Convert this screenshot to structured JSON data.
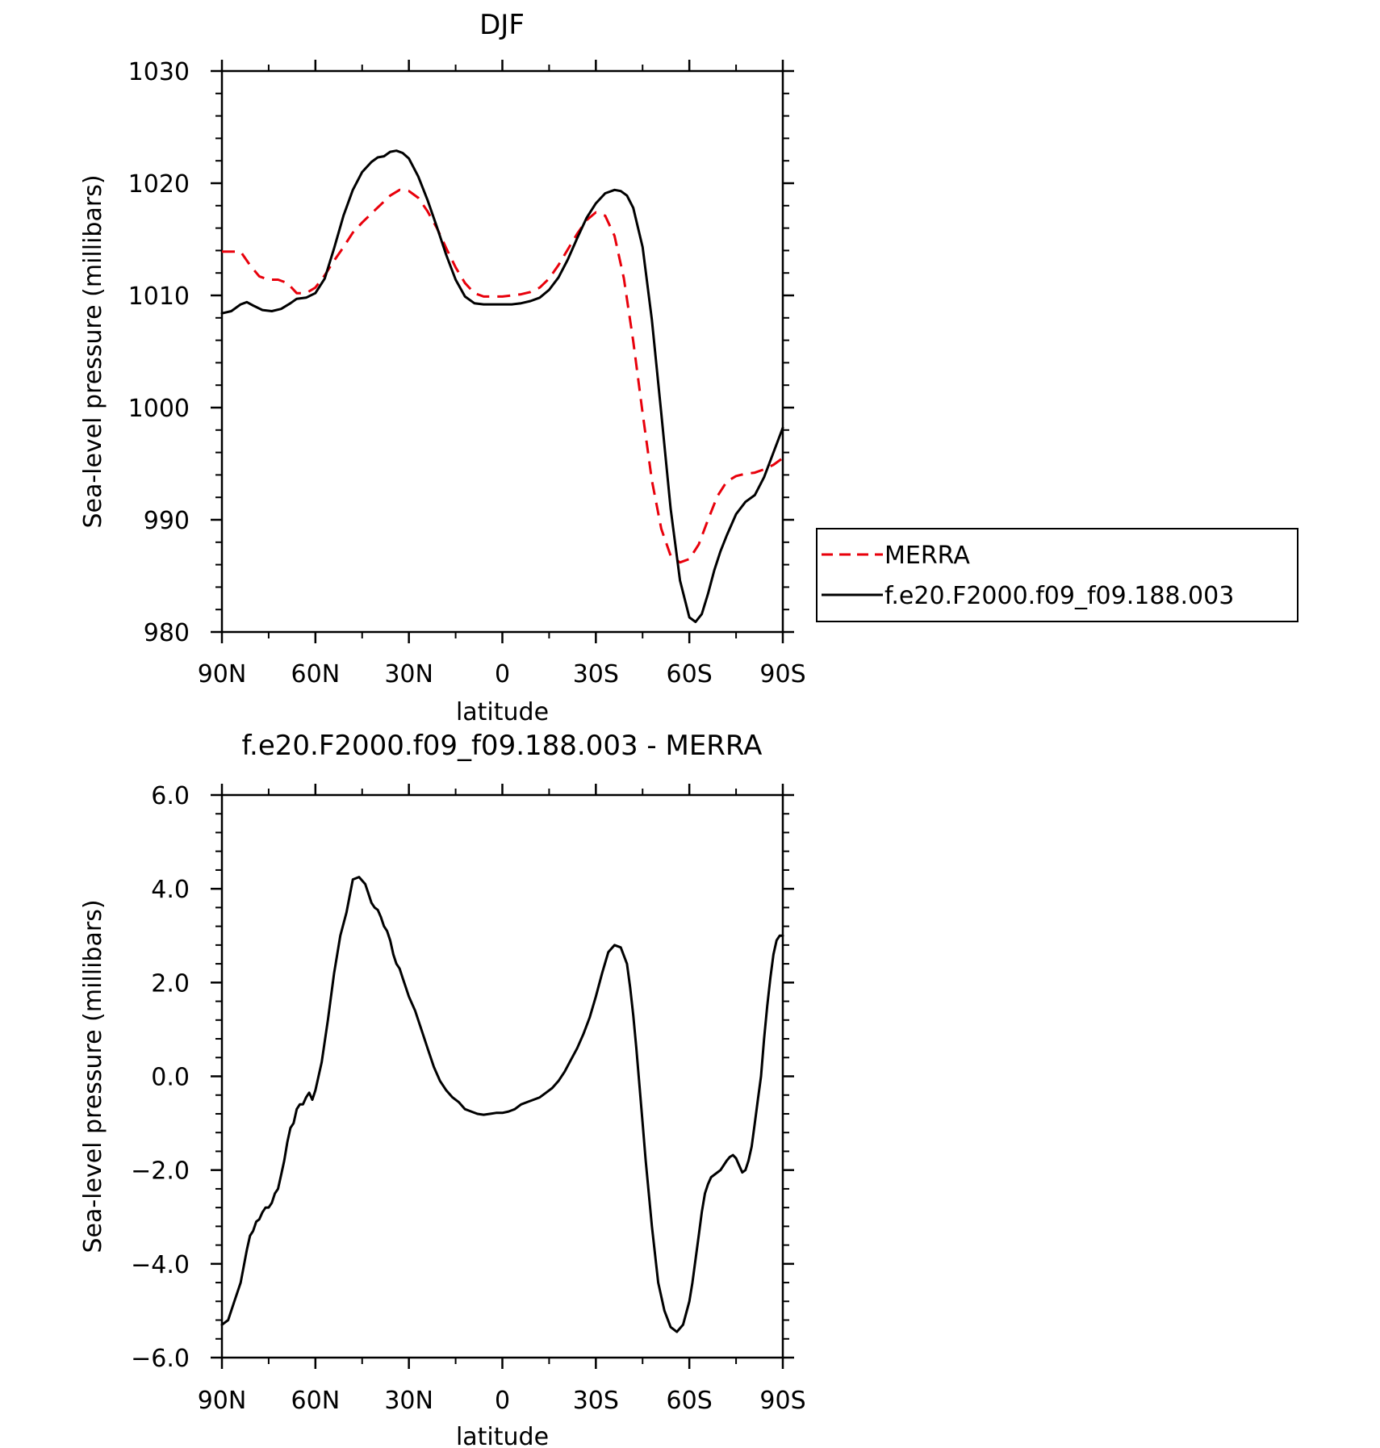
{
  "chart_data": [
    {
      "type": "line",
      "title": "DJF",
      "xlabel": "latitude",
      "ylabel": "Sea-level pressure (millibars)",
      "xlim": [
        90,
        -90
      ],
      "ylim": [
        980,
        1030
      ],
      "x_tick_values": [
        90,
        60,
        30,
        0,
        -30,
        -60,
        -90
      ],
      "x_tick_labels": [
        "90N",
        "60N",
        "30N",
        "0",
        "30S",
        "60S",
        "90S"
      ],
      "y_tick_values": [
        980,
        990,
        1000,
        1010,
        1020,
        1030
      ],
      "y_tick_labels": [
        "980",
        "990",
        "1000",
        "1010",
        "1020",
        "1030"
      ],
      "legend_position": "right",
      "series": [
        {
          "name": "MERRA",
          "color": "#e8000b",
          "dash": "dashed",
          "x": [
            90,
            86,
            84,
            81,
            78,
            75,
            72,
            69,
            66,
            63,
            60,
            57,
            54,
            51,
            48,
            45,
            42,
            39,
            36,
            33,
            30,
            27,
            24,
            21,
            18,
            15,
            12,
            9,
            6,
            3,
            0,
            -3,
            -6,
            -9,
            -12,
            -15,
            -18,
            -21,
            -24,
            -27,
            -30,
            -33,
            -36,
            -39,
            -42,
            -45,
            -48,
            -51,
            -54,
            -57,
            -60,
            -63,
            -66,
            -69,
            -72,
            -75,
            -78,
            -81,
            -84,
            -87,
            -90
          ],
          "y": [
            1013.9,
            1013.9,
            1013.9,
            1012.7,
            1011.7,
            1011.4,
            1011.4,
            1011.1,
            1010.2,
            1010.2,
            1010.7,
            1011.8,
            1013.1,
            1014.3,
            1015.6,
            1016.5,
            1017.3,
            1018.1,
            1018.9,
            1019.4,
            1019.3,
            1018.7,
            1017.5,
            1016.0,
            1014.2,
            1012.5,
            1011.1,
            1010.2,
            1009.9,
            1009.9,
            1009.9,
            1010.0,
            1010.1,
            1010.3,
            1010.7,
            1011.5,
            1012.7,
            1014.1,
            1015.5,
            1016.7,
            1017.4,
            1017.1,
            1015.3,
            1011.5,
            1005.9,
            999.5,
            993.5,
            989.2,
            986.8,
            986.2,
            986.5,
            987.8,
            990.0,
            992.1,
            993.4,
            993.9,
            994.1,
            994.2,
            994.5,
            994.9,
            995.5
          ]
        },
        {
          "name": "f.e20.F2000.f09_f09.188.003",
          "color": "#000000",
          "dash": "solid",
          "x": [
            90,
            87,
            84,
            82,
            80,
            77,
            74,
            71,
            68,
            66,
            63,
            60,
            57,
            54,
            51,
            48,
            45,
            42,
            40,
            38,
            36,
            34,
            32,
            30,
            27,
            24,
            21,
            18,
            15,
            12,
            9,
            6,
            3,
            0,
            -3,
            -6,
            -9,
            -12,
            -15,
            -18,
            -21,
            -24,
            -27,
            -30,
            -33,
            -36,
            -38,
            -40,
            -42,
            -45,
            -48,
            -51,
            -54,
            -57,
            -60,
            -62,
            -64,
            -66,
            -68,
            -70,
            -72,
            -75,
            -78,
            -81,
            -84,
            -87,
            -90
          ],
          "y": [
            1008.4,
            1008.6,
            1009.2,
            1009.4,
            1009.1,
            1008.7,
            1008.6,
            1008.8,
            1009.3,
            1009.7,
            1009.8,
            1010.2,
            1011.5,
            1014.2,
            1017.1,
            1019.4,
            1021.0,
            1021.9,
            1022.3,
            1022.4,
            1022.8,
            1022.9,
            1022.7,
            1022.2,
            1020.6,
            1018.5,
            1016.1,
            1013.6,
            1011.4,
            1009.9,
            1009.3,
            1009.2,
            1009.2,
            1009.2,
            1009.2,
            1009.3,
            1009.5,
            1009.8,
            1010.5,
            1011.6,
            1013.2,
            1015.1,
            1016.9,
            1018.2,
            1019.1,
            1019.4,
            1019.3,
            1018.9,
            1017.8,
            1014.3,
            1007.8,
            999.5,
            991.0,
            984.6,
            981.3,
            980.9,
            981.6,
            983.4,
            985.5,
            987.2,
            988.6,
            990.5,
            991.6,
            992.2,
            993.8,
            996.0,
            998.2
          ]
        }
      ]
    },
    {
      "type": "line",
      "title": "f.e20.F2000.f09_f09.188.003 - MERRA",
      "xlabel": "latitude",
      "ylabel": "Sea-level pressure (millibars)",
      "xlim": [
        90,
        -90
      ],
      "ylim": [
        -6,
        6
      ],
      "x_tick_values": [
        90,
        60,
        30,
        0,
        -30,
        -60,
        -90
      ],
      "x_tick_labels": [
        "90N",
        "60N",
        "30N",
        "0",
        "30S",
        "60S",
        "90S"
      ],
      "y_tick_values": [
        -6,
        -4,
        -2,
        0,
        2,
        4,
        6
      ],
      "y_tick_labels": [
        "−6.0",
        "−4.0",
        "−2.0",
        "0.0",
        "2.0",
        "4.0",
        "6.0"
      ],
      "series": [
        {
          "color": "#000000",
          "dash": "solid",
          "x": [
            90,
            88,
            86,
            84,
            82,
            81,
            80,
            79,
            78,
            77,
            76,
            75,
            74,
            73,
            72,
            71,
            70,
            69,
            68,
            67,
            66,
            65,
            64,
            63,
            62,
            61,
            60,
            58,
            56,
            54,
            52,
            50,
            48,
            46,
            44,
            43,
            42,
            41,
            40,
            39,
            38,
            37,
            36,
            35,
            34,
            33,
            32,
            31,
            30,
            28,
            26,
            24,
            22,
            20,
            18,
            16,
            14,
            12,
            10,
            8,
            6,
            4,
            2,
            0,
            -2,
            -4,
            -6,
            -8,
            -10,
            -12,
            -13,
            -14,
            -15,
            -16,
            -18,
            -20,
            -22,
            -24,
            -26,
            -28,
            -30,
            -32,
            -34,
            -36,
            -38,
            -40,
            -41,
            -42,
            -43,
            -44,
            -45,
            -46,
            -48,
            -50,
            -52,
            -54,
            -56,
            -58,
            -60,
            -61,
            -62,
            -63,
            -64,
            -65,
            -66,
            -67,
            -68,
            -70,
            -72,
            -73,
            -74,
            -75,
            -76,
            -77,
            -78,
            -79,
            -80,
            -81,
            -82,
            -83,
            -84,
            -85,
            -86,
            -87,
            -88,
            -89,
            -90
          ],
          "y": [
            -5.3,
            -5.2,
            -4.8,
            -4.4,
            -3.7,
            -3.4,
            -3.3,
            -3.1,
            -3.05,
            -2.9,
            -2.8,
            -2.8,
            -2.7,
            -2.5,
            -2.4,
            -2.1,
            -1.8,
            -1.4,
            -1.1,
            -1.0,
            -0.7,
            -0.6,
            -0.6,
            -0.45,
            -0.35,
            -0.5,
            -0.3,
            0.3,
            1.2,
            2.2,
            3.0,
            3.5,
            4.2,
            4.25,
            4.1,
            3.9,
            3.7,
            3.6,
            3.55,
            3.4,
            3.2,
            3.1,
            2.9,
            2.6,
            2.4,
            2.3,
            2.1,
            1.9,
            1.7,
            1.4,
            1.0,
            0.6,
            0.2,
            -0.1,
            -0.3,
            -0.45,
            -0.55,
            -0.7,
            -0.75,
            -0.8,
            -0.82,
            -0.8,
            -0.78,
            -0.78,
            -0.75,
            -0.7,
            -0.6,
            -0.55,
            -0.5,
            -0.45,
            -0.4,
            -0.35,
            -0.3,
            -0.25,
            -0.1,
            0.1,
            0.35,
            0.6,
            0.9,
            1.25,
            1.7,
            2.2,
            2.65,
            2.8,
            2.75,
            2.4,
            1.9,
            1.3,
            0.6,
            -0.2,
            -1.0,
            -1.8,
            -3.2,
            -4.4,
            -5.0,
            -5.35,
            -5.45,
            -5.3,
            -4.8,
            -4.4,
            -3.9,
            -3.4,
            -2.9,
            -2.5,
            -2.3,
            -2.15,
            -2.1,
            -2.0,
            -1.8,
            -1.72,
            -1.68,
            -1.75,
            -1.9,
            -2.05,
            -2.0,
            -1.8,
            -1.5,
            -1.0,
            -0.5,
            0.0,
            0.8,
            1.5,
            2.1,
            2.6,
            2.9,
            3.0,
            3.0
          ]
        }
      ]
    }
  ]
}
